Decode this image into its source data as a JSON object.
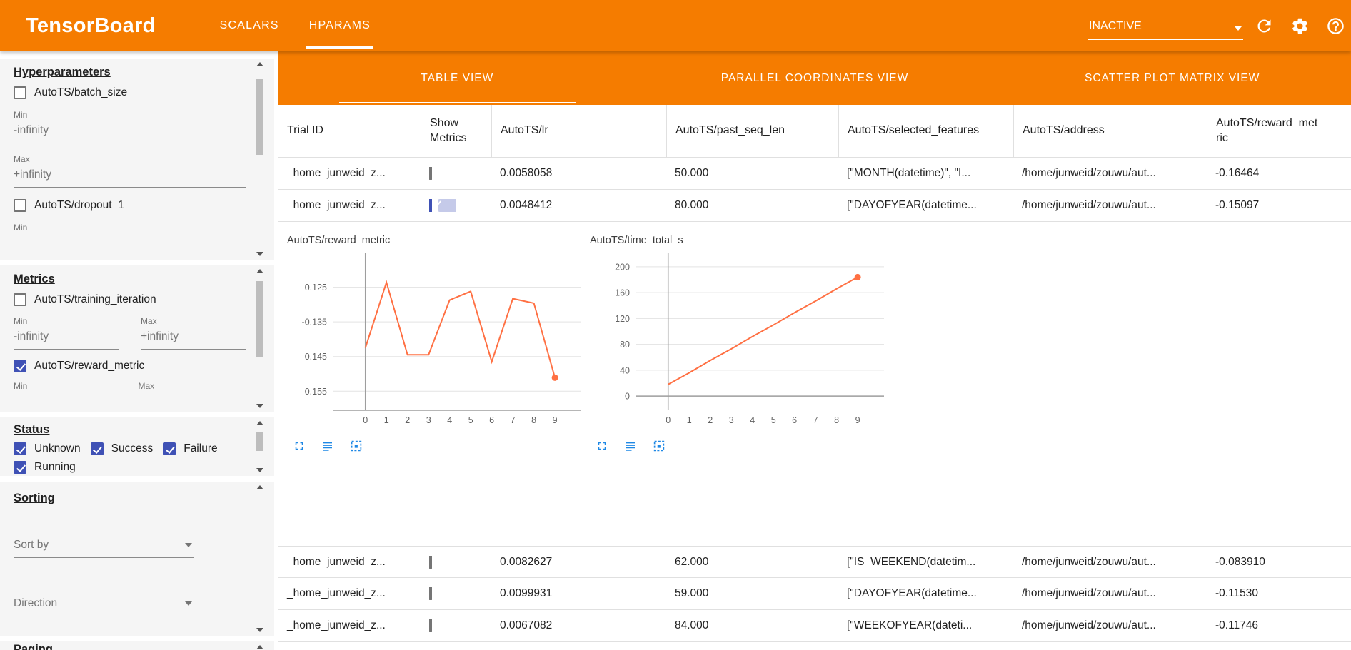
{
  "topbar": {
    "title": "TensorBoard",
    "nav_tabs": [
      {
        "label": "SCALARS",
        "active": false
      },
      {
        "label": "HPARAMS",
        "active": true
      }
    ],
    "run_status": "INACTIVE"
  },
  "sidebar": {
    "hyperparameters": {
      "heading": "Hyperparameters",
      "items": [
        {
          "label": "AutoTS/batch_size",
          "checked": false,
          "min_label": "Min",
          "min_value": "-infinity",
          "max_label": "Max",
          "max_value": "+infinity"
        },
        {
          "label": "AutoTS/dropout_1",
          "checked": false,
          "min_label": "Min"
        }
      ]
    },
    "metrics": {
      "heading": "Metrics",
      "items": [
        {
          "label": "AutoTS/training_iteration",
          "checked": false,
          "min_label": "Min",
          "min_value": "-infinity",
          "max_label": "Max",
          "max_value": "+infinity"
        },
        {
          "label": "AutoTS/reward_metric",
          "checked": true,
          "min_label": "Min",
          "max_label": "Max"
        }
      ]
    },
    "status": {
      "heading": "Status",
      "items": [
        {
          "label": "Unknown",
          "checked": true
        },
        {
          "label": "Success",
          "checked": true
        },
        {
          "label": "Failure",
          "checked": true
        },
        {
          "label": "Running",
          "checked": true
        }
      ]
    },
    "sorting": {
      "heading": "Sorting",
      "sort_by_placeholder": "Sort by",
      "direction_placeholder": "Direction"
    },
    "paging": {
      "heading": "Paging"
    }
  },
  "main": {
    "view_tabs": [
      {
        "label": "TABLE VIEW",
        "active": true
      },
      {
        "label": "PARALLEL COORDINATES VIEW",
        "active": false
      },
      {
        "label": "SCATTER PLOT MATRIX VIEW",
        "active": false
      }
    ],
    "table": {
      "columns": [
        "Trial ID",
        "Show Metrics",
        "AutoTS/lr",
        "AutoTS/past_seq_len",
        "AutoTS/selected_features",
        "AutoTS/address",
        "AutoTS/reward_metric"
      ],
      "rows": [
        {
          "trial_id": "_home_junweid_z...",
          "show_metrics": false,
          "lr": "0.0058058",
          "past_seq_len": "50.000",
          "selected_features": "[\"MONTH(datetime)\", \"I...",
          "address": "/home/junweid/zouwu/aut...",
          "reward_metric": "-0.16464"
        },
        {
          "trial_id": "_home_junweid_z...",
          "show_metrics": true,
          "lr": "0.0048412",
          "past_seq_len": "80.000",
          "selected_features": "[\"DAYOFYEAR(datetime...",
          "address": "/home/junweid/zouwu/aut...",
          "reward_metric": "-0.15097"
        },
        {
          "trial_id": "_home_junweid_z...",
          "show_metrics": false,
          "lr": "0.0082627",
          "past_seq_len": "62.000",
          "selected_features": "[\"IS_WEEKEND(datetim...",
          "address": "/home/junweid/zouwu/aut...",
          "reward_metric": "-0.083910"
        },
        {
          "trial_id": "_home_junweid_z...",
          "show_metrics": false,
          "lr": "0.0099931",
          "past_seq_len": "59.000",
          "selected_features": "[\"DAYOFYEAR(datetime...",
          "address": "/home/junweid/zouwu/aut...",
          "reward_metric": "-0.11530"
        },
        {
          "trial_id": "_home_junweid_z...",
          "show_metrics": false,
          "lr": "0.0067082",
          "past_seq_len": "84.000",
          "selected_features": "[\"WEEKOFYEAR(dateti...",
          "address": "/home/junweid/zouwu/aut...",
          "reward_metric": "-0.11746"
        }
      ]
    }
  },
  "chart_data": [
    {
      "type": "line",
      "title": "AutoTS/reward_metric",
      "x": [
        0,
        1,
        2,
        3,
        4,
        5,
        6,
        7,
        8,
        9
      ],
      "values": [
        -0.1425,
        -0.1236,
        -0.1445,
        -0.1445,
        -0.1287,
        -0.1262,
        -0.1465,
        -0.1283,
        -0.1296,
        -0.1511
      ],
      "yticks": [
        -0.125,
        -0.135,
        -0.145,
        -0.155
      ],
      "ylim": [
        -0.1605,
        -0.115
      ],
      "xlim": [
        -1.55,
        10.25
      ],
      "x_axis_y": -0.1605,
      "line_color": "#ff7043",
      "endpoint_marker": true,
      "grid": true,
      "legend": "none"
    },
    {
      "type": "line",
      "title": "AutoTS/time_total_s",
      "x": [
        0,
        1,
        2,
        3,
        4,
        5,
        6,
        7,
        8,
        9
      ],
      "values": [
        18,
        36,
        55,
        73,
        92,
        110,
        129,
        147,
        166,
        184
      ],
      "yticks": [
        0,
        40,
        80,
        120,
        160,
        200
      ],
      "ylim": [
        -22,
        222
      ],
      "xlim": [
        -1.55,
        10.25
      ],
      "x_axis_y": 0,
      "line_color": "#ff7043",
      "endpoint_marker": true,
      "grid": true,
      "legend": "none"
    }
  ],
  "icons": {
    "topbar": [
      "reload-icon",
      "settings-icon",
      "help-icon"
    ],
    "dropdowns": "caret-down-icon",
    "chart_toolbar": [
      "fullscreen-icon",
      "data-view-icon",
      "region-select-icon"
    ]
  },
  "colors": {
    "toolbar_orange": "#f57c00",
    "checkbox_blue": "#3f51b5",
    "chart_line_orange": "#ff7043",
    "chart_tool_blue": "#1e88e5"
  }
}
